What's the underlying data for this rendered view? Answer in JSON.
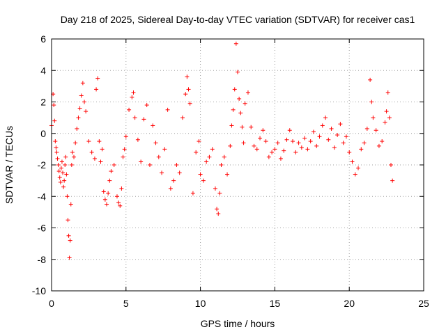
{
  "chart_data": {
    "type": "scatter",
    "title": "Day 218 of 2025, Sidereal Day-to-day VTEC variation (SDTVAR) for receiver cas1",
    "xlabel": "GPS time / hours",
    "ylabel": "SDTVAR / TECUs",
    "xlim": [
      0,
      25
    ],
    "ylim": [
      -10,
      6
    ],
    "xticks": [
      0,
      5,
      10,
      15,
      20,
      25
    ],
    "yticks": [
      -10,
      -8,
      -6,
      -4,
      -2,
      0,
      2,
      4,
      6
    ],
    "grid": true,
    "marker": "plus",
    "color": "#ff0000",
    "series": [
      {
        "name": "SDTVAR",
        "x": [
          0.0,
          0.1,
          0.15,
          0.2,
          0.25,
          0.3,
          0.35,
          0.4,
          0.45,
          0.5,
          0.55,
          0.6,
          0.65,
          0.7,
          0.75,
          0.8,
          0.85,
          0.9,
          0.95,
          1.0,
          1.05,
          1.1,
          1.15,
          1.2,
          1.25,
          1.3,
          1.35,
          1.4,
          1.5,
          1.6,
          1.7,
          1.8,
          1.9,
          2.0,
          2.1,
          2.2,
          2.3,
          2.5,
          2.7,
          2.9,
          3.0,
          3.1,
          3.2,
          3.3,
          3.4,
          3.5,
          3.6,
          3.7,
          3.8,
          3.9,
          4.0,
          4.2,
          4.4,
          4.5,
          4.6,
          4.7,
          4.8,
          4.9,
          5.0,
          5.2,
          5.4,
          5.5,
          5.6,
          5.8,
          6.0,
          6.2,
          6.4,
          6.6,
          6.8,
          7.0,
          7.2,
          7.4,
          7.6,
          7.8,
          8.0,
          8.2,
          8.4,
          8.6,
          8.8,
          9.0,
          9.1,
          9.2,
          9.3,
          9.5,
          9.7,
          9.9,
          10.0,
          10.2,
          10.4,
          10.6,
          10.8,
          11.0,
          11.1,
          11.2,
          11.3,
          11.4,
          11.6,
          11.8,
          12.0,
          12.1,
          12.2,
          12.3,
          12.4,
          12.5,
          12.6,
          12.7,
          12.8,
          12.9,
          13.0,
          13.2,
          13.4,
          13.6,
          13.8,
          14.0,
          14.2,
          14.4,
          14.6,
          14.8,
          15.0,
          15.2,
          15.4,
          15.6,
          15.8,
          16.0,
          16.2,
          16.4,
          16.6,
          16.8,
          17.0,
          17.2,
          17.4,
          17.6,
          17.8,
          18.0,
          18.2,
          18.4,
          18.6,
          18.8,
          19.0,
          19.2,
          19.4,
          19.6,
          19.8,
          20.0,
          20.2,
          20.4,
          20.6,
          20.8,
          21.0,
          21.2,
          21.4,
          21.5,
          21.6,
          21.8,
          22.0,
          22.2,
          22.4,
          22.5,
          22.6,
          22.7,
          22.8,
          22.9
        ],
        "y": [
          0.5,
          2.5,
          1.8,
          0.8,
          -0.5,
          -0.9,
          -1.2,
          -1.6,
          -2.0,
          -2.4,
          -2.8,
          -3.1,
          -2.2,
          -1.8,
          -2.5,
          -3.4,
          -3.0,
          -2.0,
          -1.5,
          -2.6,
          -4.0,
          -5.5,
          -6.5,
          -7.9,
          -6.8,
          -4.5,
          -2.0,
          -1.2,
          -1.5,
          -0.6,
          0.3,
          1.0,
          1.6,
          2.4,
          3.2,
          2.0,
          1.4,
          -0.5,
          -1.2,
          -1.6,
          2.8,
          3.5,
          -0.5,
          -1.8,
          -1.0,
          -3.7,
          -4.2,
          -4.5,
          -3.8,
          -3.0,
          -2.4,
          -2.0,
          -4.0,
          -4.4,
          -4.6,
          -3.5,
          -1.5,
          -1.0,
          -0.2,
          1.5,
          2.3,
          2.6,
          1.0,
          -0.4,
          -1.8,
          0.9,
          1.8,
          -2.0,
          0.5,
          -0.6,
          -1.5,
          -2.5,
          -1.0,
          1.5,
          -3.5,
          -3.0,
          -2.0,
          -2.5,
          1.0,
          2.5,
          3.6,
          2.8,
          1.9,
          -3.8,
          -1.2,
          -0.5,
          -2.6,
          -3.0,
          -1.8,
          -1.5,
          -1.0,
          -3.5,
          -4.8,
          -5.1,
          -3.8,
          -2.0,
          -1.5,
          -2.6,
          -0.8,
          0.5,
          1.5,
          2.8,
          5.7,
          3.9,
          2.2,
          1.3,
          0.4,
          -0.6,
          1.9,
          2.6,
          0.4,
          -0.8,
          -1.0,
          -0.3,
          0.2,
          -0.5,
          -1.5,
          -1.2,
          -1.0,
          -0.6,
          -1.6,
          -1.1,
          -0.4,
          0.2,
          -0.5,
          -1.2,
          -0.6,
          -0.9,
          -0.3,
          -1.0,
          -0.5,
          0.1,
          -0.8,
          -0.2,
          0.5,
          1.0,
          -0.4,
          0.3,
          -0.9,
          -0.1,
          0.6,
          -0.6,
          -0.2,
          -1.2,
          -1.8,
          -2.6,
          -2.2,
          -1.0,
          -0.6,
          0.3,
          3.4,
          2.0,
          1.0,
          0.2,
          -0.8,
          -0.5,
          0.7,
          1.4,
          2.6,
          1.0,
          -2.0,
          -3.0
        ]
      }
    ]
  }
}
